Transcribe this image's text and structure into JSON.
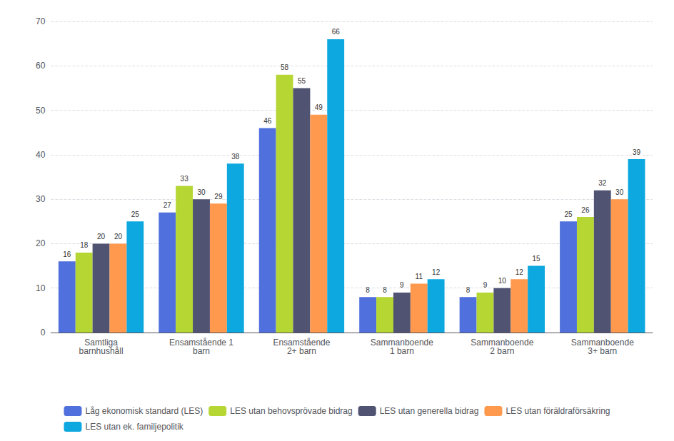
{
  "chart_data": {
    "type": "bar",
    "categories": [
      "Samtliga\nbarnhushåll",
      "Ensamstående 1\nbarn",
      "Ensamstående\n2+ barn",
      "Sammanboende\n1 barn",
      "Sammanboende\n2 barn",
      "Sammanboende\n3+ barn"
    ],
    "series": [
      {
        "name": "Låg ekonomisk standard (LES)",
        "values": [
          16,
          27,
          46,
          8,
          8,
          25
        ]
      },
      {
        "name": "LES utan behovsprövade bidrag",
        "values": [
          18,
          33,
          58,
          8,
          9,
          26
        ]
      },
      {
        "name": "LES utan generella bidrag",
        "values": [
          20,
          30,
          55,
          9,
          10,
          32
        ]
      },
      {
        "name": "LES utan föräldraförsäkring",
        "values": [
          20,
          29,
          49,
          11,
          12,
          30
        ]
      },
      {
        "name": "LES utan ek. familjepolitik",
        "values": [
          25,
          38,
          66,
          12,
          15,
          39
        ]
      }
    ],
    "ylim": [
      0,
      70
    ],
    "yticks": [
      0,
      10,
      20,
      30,
      40,
      50,
      60,
      70
    ],
    "grid": true,
    "data_labels": true,
    "legend": "bottom"
  }
}
